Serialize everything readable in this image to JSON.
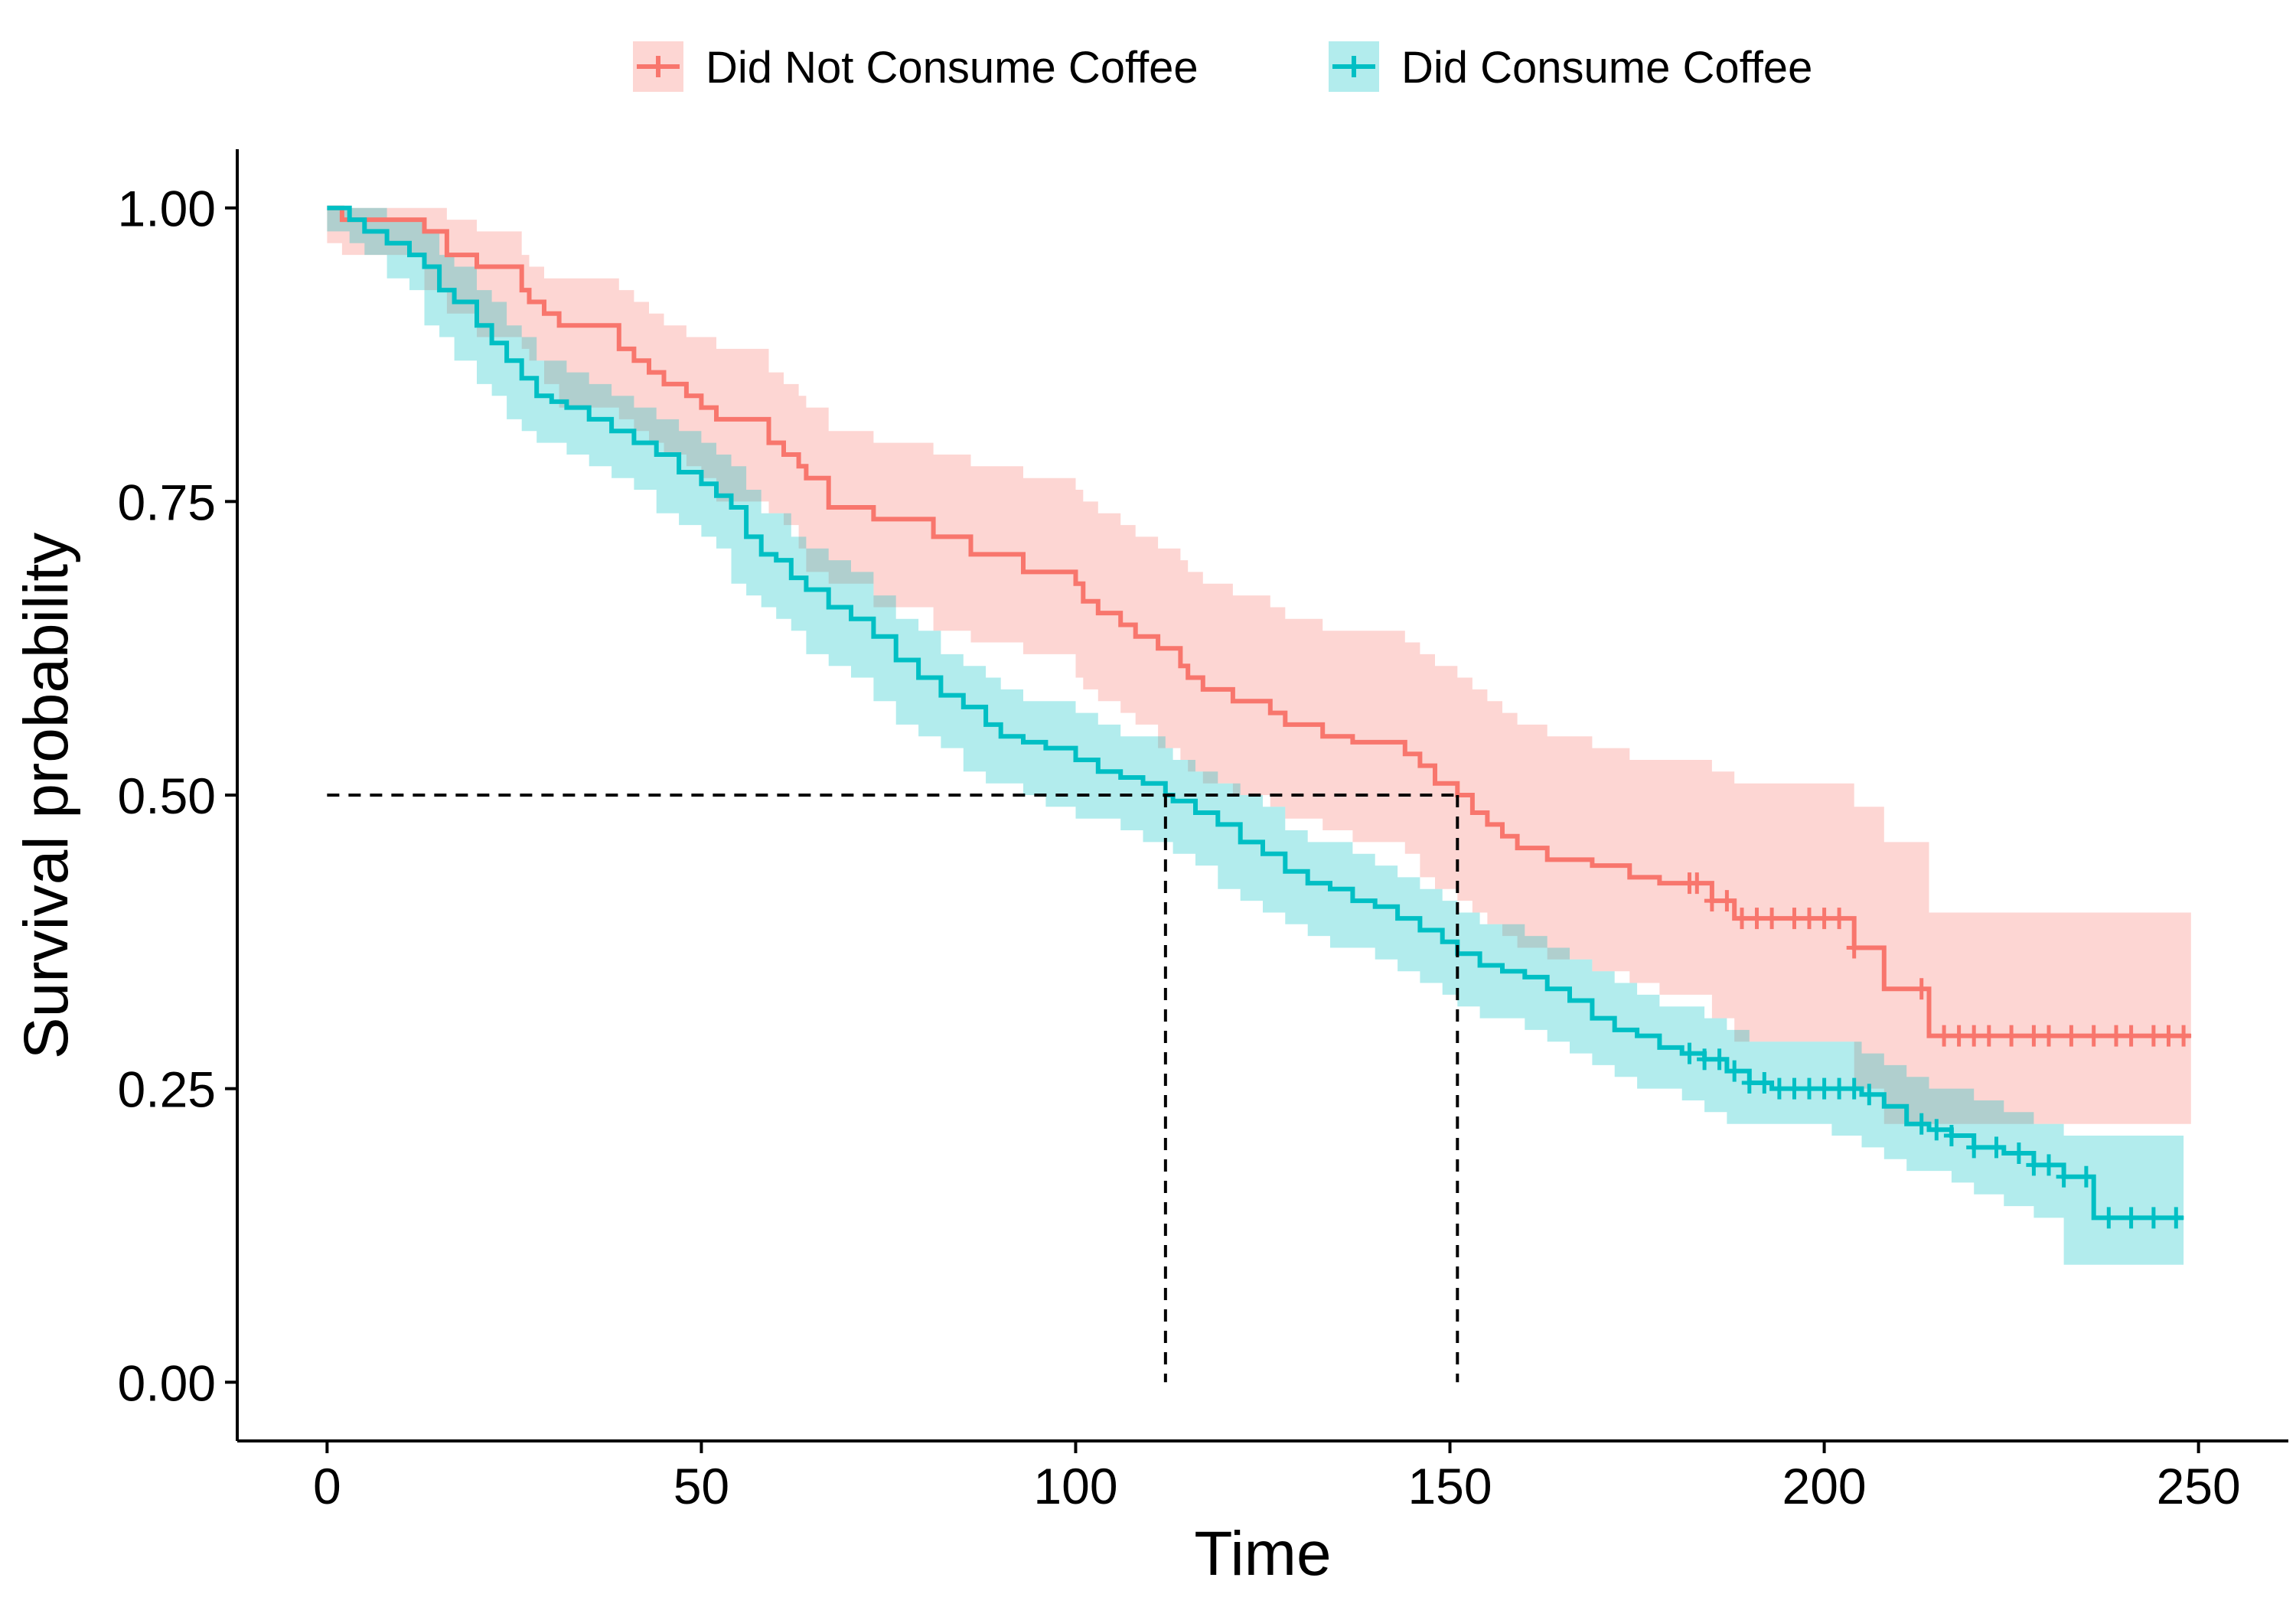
{
  "chart_data": {
    "type": "line",
    "subtype": "kaplan-meier",
    "xlabel": "Time",
    "ylabel": "Survival probability",
    "xlim": [
      -12,
      262
    ],
    "ylim": [
      -0.05,
      1.05
    ],
    "xticks": [
      0,
      50,
      100,
      150,
      200,
      250
    ],
    "yticks": [
      0.0,
      0.25,
      0.5,
      0.75,
      1.0
    ],
    "xtick_labels": [
      "0",
      "50",
      "100",
      "150",
      "200",
      "250"
    ],
    "ytick_labels": [
      "0.00",
      "0.25",
      "0.50",
      "0.75",
      "1.00"
    ],
    "legend": {
      "position": "top"
    },
    "grid": false,
    "median_reference": {
      "y": 0.5,
      "x_from": 0,
      "x_to": 151,
      "medians": [
        112,
        151
      ],
      "style": "dashed",
      "color": "#000000"
    },
    "series": [
      {
        "name": "Did Not Consume Coffee",
        "color": "#F8766D",
        "band_color": "#F8766D",
        "x": [
          0,
          2,
          13,
          16,
          20,
          26,
          27,
          29,
          31,
          39,
          41,
          43,
          45,
          48,
          50,
          52,
          59,
          61,
          63,
          64,
          67,
          73,
          81,
          86,
          93,
          100,
          101,
          103,
          106,
          108,
          111,
          114,
          115,
          117,
          121,
          126,
          128,
          133,
          137,
          144,
          146,
          148,
          151,
          153,
          155,
          157,
          159,
          163,
          169,
          174,
          178,
          185,
          188,
          204,
          208,
          214,
          249
        ],
        "y": [
          1.0,
          0.99,
          0.98,
          0.96,
          0.95,
          0.93,
          0.92,
          0.91,
          0.9,
          0.88,
          0.87,
          0.86,
          0.85,
          0.84,
          0.83,
          0.82,
          0.8,
          0.79,
          0.78,
          0.77,
          0.745,
          0.735,
          0.72,
          0.705,
          0.69,
          0.68,
          0.665,
          0.655,
          0.645,
          0.635,
          0.625,
          0.61,
          0.6,
          0.59,
          0.58,
          0.57,
          0.56,
          0.55,
          0.545,
          0.535,
          0.525,
          0.51,
          0.5,
          0.485,
          0.475,
          0.465,
          0.455,
          0.445,
          0.44,
          0.43,
          0.425,
          0.41,
          0.395,
          0.37,
          0.335,
          0.295,
          0.295
        ],
        "ci_upper": [
          1.0,
          1.0,
          1.0,
          0.99,
          0.98,
          0.96,
          0.95,
          0.94,
          0.94,
          0.93,
          0.92,
          0.91,
          0.9,
          0.89,
          0.89,
          0.88,
          0.86,
          0.85,
          0.84,
          0.83,
          0.81,
          0.8,
          0.79,
          0.78,
          0.77,
          0.76,
          0.75,
          0.74,
          0.73,
          0.72,
          0.71,
          0.7,
          0.69,
          0.68,
          0.67,
          0.66,
          0.65,
          0.64,
          0.64,
          0.63,
          0.62,
          0.61,
          0.6,
          0.59,
          0.58,
          0.57,
          0.56,
          0.55,
          0.54,
          0.53,
          0.53,
          0.52,
          0.51,
          0.49,
          0.46,
          0.4,
          0.4
        ],
        "ci_lower": [
          1.0,
          0.97,
          0.96,
          0.93,
          0.91,
          0.89,
          0.88,
          0.87,
          0.85,
          0.83,
          0.82,
          0.81,
          0.8,
          0.79,
          0.78,
          0.77,
          0.75,
          0.74,
          0.73,
          0.71,
          0.69,
          0.68,
          0.66,
          0.64,
          0.63,
          0.62,
          0.6,
          0.59,
          0.58,
          0.57,
          0.56,
          0.54,
          0.53,
          0.52,
          0.51,
          0.5,
          0.49,
          0.48,
          0.47,
          0.46,
          0.45,
          0.43,
          0.42,
          0.41,
          0.4,
          0.39,
          0.38,
          0.37,
          0.36,
          0.35,
          0.34,
          0.33,
          0.31,
          0.29,
          0.25,
          0.22,
          0.22
        ],
        "censored": [
          182,
          183,
          185,
          187,
          189,
          191,
          193,
          196,
          198,
          200,
          202,
          204,
          213,
          216,
          218,
          220,
          222,
          225,
          228,
          230,
          233,
          236,
          239,
          241,
          244,
          246,
          248
        ]
      },
      {
        "name": "Did Consume Coffee",
        "color": "#00BFC4",
        "band_color": "#00BFC4",
        "x": [
          0,
          3,
          5,
          8,
          11,
          13,
          15,
          17,
          20,
          22,
          24,
          26,
          28,
          30,
          32,
          35,
          38,
          41,
          44,
          47,
          50,
          52,
          54,
          56,
          58,
          60,
          62,
          64,
          67,
          70,
          73,
          76,
          79,
          82,
          85,
          88,
          90,
          93,
          96,
          100,
          103,
          106,
          109,
          112,
          113,
          116,
          119,
          122,
          125,
          128,
          131,
          134,
          137,
          140,
          143,
          146,
          149,
          151,
          154,
          157,
          160,
          163,
          166,
          169,
          172,
          175,
          178,
          181,
          184,
          187,
          190,
          193,
          197,
          201,
          205,
          208,
          211,
          214,
          217,
          220,
          224,
          228,
          232,
          236,
          240,
          244,
          248
        ],
        "y": [
          1.0,
          0.99,
          0.98,
          0.97,
          0.96,
          0.95,
          0.93,
          0.92,
          0.9,
          0.885,
          0.87,
          0.855,
          0.84,
          0.835,
          0.83,
          0.82,
          0.81,
          0.8,
          0.79,
          0.775,
          0.765,
          0.755,
          0.745,
          0.72,
          0.705,
          0.7,
          0.685,
          0.675,
          0.66,
          0.65,
          0.635,
          0.615,
          0.6,
          0.585,
          0.575,
          0.56,
          0.55,
          0.545,
          0.54,
          0.53,
          0.52,
          0.515,
          0.51,
          0.5,
          0.495,
          0.485,
          0.475,
          0.46,
          0.45,
          0.435,
          0.425,
          0.42,
          0.41,
          0.405,
          0.395,
          0.385,
          0.375,
          0.365,
          0.355,
          0.35,
          0.345,
          0.335,
          0.325,
          0.31,
          0.3,
          0.295,
          0.285,
          0.28,
          0.275,
          0.265,
          0.255,
          0.25,
          0.25,
          0.25,
          0.245,
          0.235,
          0.22,
          0.215,
          0.21,
          0.2,
          0.195,
          0.185,
          0.175,
          0.14,
          0.14,
          0.14,
          0.14
        ],
        "ci_upper": [
          1.0,
          1.0,
          1.0,
          0.99,
          0.99,
          0.98,
          0.96,
          0.95,
          0.93,
          0.92,
          0.9,
          0.89,
          0.87,
          0.87,
          0.86,
          0.85,
          0.84,
          0.83,
          0.82,
          0.81,
          0.8,
          0.79,
          0.78,
          0.76,
          0.74,
          0.74,
          0.72,
          0.71,
          0.7,
          0.69,
          0.67,
          0.65,
          0.64,
          0.62,
          0.61,
          0.6,
          0.59,
          0.58,
          0.58,
          0.57,
          0.56,
          0.55,
          0.55,
          0.54,
          0.53,
          0.52,
          0.51,
          0.5,
          0.49,
          0.47,
          0.46,
          0.46,
          0.45,
          0.44,
          0.43,
          0.42,
          0.41,
          0.4,
          0.39,
          0.39,
          0.38,
          0.37,
          0.36,
          0.35,
          0.34,
          0.33,
          0.32,
          0.32,
          0.31,
          0.3,
          0.29,
          0.29,
          0.29,
          0.29,
          0.28,
          0.27,
          0.26,
          0.25,
          0.25,
          0.24,
          0.23,
          0.22,
          0.21,
          0.21,
          0.21,
          0.21,
          0.21
        ],
        "ci_lower": [
          1.0,
          0.98,
          0.97,
          0.96,
          0.94,
          0.93,
          0.9,
          0.89,
          0.87,
          0.85,
          0.84,
          0.82,
          0.81,
          0.8,
          0.8,
          0.79,
          0.78,
          0.77,
          0.76,
          0.74,
          0.73,
          0.72,
          0.71,
          0.68,
          0.67,
          0.66,
          0.65,
          0.64,
          0.62,
          0.61,
          0.6,
          0.58,
          0.56,
          0.55,
          0.54,
          0.52,
          0.51,
          0.51,
          0.5,
          0.49,
          0.48,
          0.48,
          0.47,
          0.46,
          0.46,
          0.45,
          0.44,
          0.42,
          0.41,
          0.4,
          0.39,
          0.38,
          0.37,
          0.37,
          0.36,
          0.35,
          0.34,
          0.33,
          0.32,
          0.31,
          0.31,
          0.3,
          0.29,
          0.28,
          0.27,
          0.26,
          0.25,
          0.25,
          0.24,
          0.23,
          0.22,
          0.22,
          0.22,
          0.22,
          0.21,
          0.2,
          0.19,
          0.18,
          0.18,
          0.17,
          0.16,
          0.15,
          0.14,
          0.1,
          0.1,
          0.1,
          0.1
        ],
        "censored": [
          182,
          184,
          186,
          188,
          190,
          192,
          194,
          196,
          198,
          200,
          202,
          204,
          206,
          213,
          215,
          217,
          220,
          223,
          226,
          228,
          230,
          232,
          235,
          238,
          241,
          244,
          247
        ]
      }
    ]
  }
}
